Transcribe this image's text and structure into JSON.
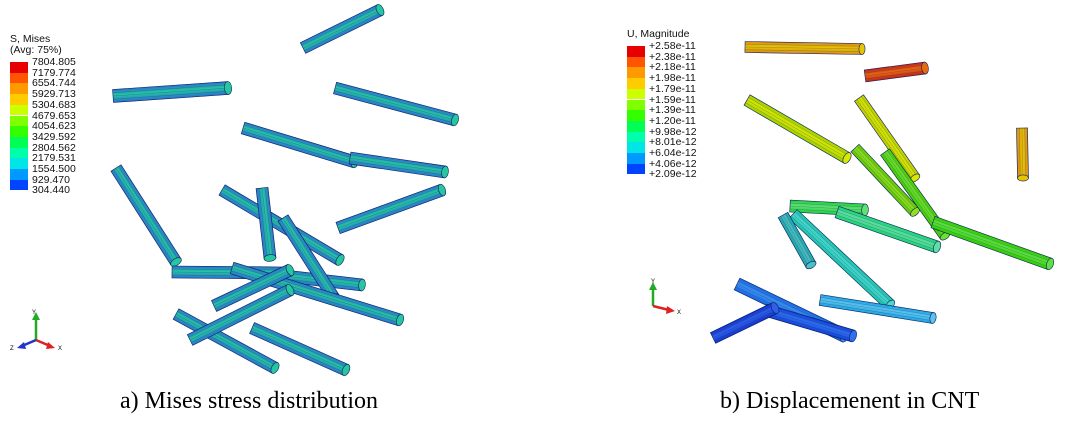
{
  "panel_a": {
    "legend_title_line1": "S, Mises",
    "legend_title_line2": "(Avg: 75%)",
    "legend_values": [
      "7804.805",
      "7179.774",
      "6554.744",
      "5929.713",
      "5304.683",
      "4679.653",
      "4054.623",
      "3429.592",
      "2804.562",
      "2179.531",
      "1554.500",
      "929.470",
      "304.440"
    ],
    "legend_colors": [
      "#e60000",
      "#ff5500",
      "#ff9900",
      "#ffcc00",
      "#ccff00",
      "#80ff00",
      "#33ff00",
      "#00ff55",
      "#00ffaa",
      "#00e6e6",
      "#0099ff",
      "#0044ff",
      "#0000ff"
    ],
    "axes": {
      "y": "Y",
      "z": "Z",
      "x": "X"
    },
    "caption": "a)   Mises stress distribution"
  },
  "panel_b": {
    "legend_title": "U, Magnitude",
    "legend_values": [
      "+2.58e-11",
      "+2.38e-11",
      "+2.18e-11",
      "+1.98e-11",
      "+1.79e-11",
      "+1.59e-11",
      "+1.39e-11",
      "+1.20e-11",
      "+9.98e-12",
      "+8.01e-12",
      "+6.04e-12",
      "+4.06e-12",
      "+2.09e-12"
    ],
    "legend_colors": [
      "#e60000",
      "#ff5500",
      "#ff9900",
      "#ffcc00",
      "#ccff00",
      "#80ff00",
      "#33ff00",
      "#00ff55",
      "#00ffaa",
      "#00e6e6",
      "#0099ff",
      "#0044ff",
      "#0000ff"
    ],
    "axes": {
      "y": "Y",
      "x": "X"
    },
    "caption": "b)   Displacemenent in CNT"
  },
  "colors": {
    "tube_base": "#2a6fd0",
    "tube_highlight": "#25c7a0",
    "tube_edge": "#0b1f5e"
  }
}
